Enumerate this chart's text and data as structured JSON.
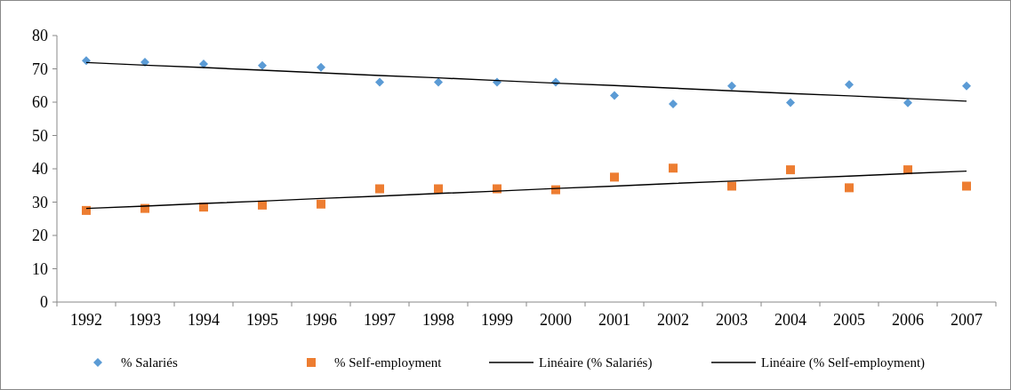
{
  "chart_data": {
    "type": "scatter",
    "categories": [
      "1992",
      "1993",
      "1994",
      "1995",
      "1996",
      "1997",
      "1998",
      "1999",
      "2000",
      "2001",
      "2002",
      "2003",
      "2004",
      "2005",
      "2006",
      "2007"
    ],
    "series": [
      {
        "name": "% Salariés",
        "marker": "diamond",
        "color": "#5b9bd5",
        "values": [
          72.5,
          72.0,
          71.5,
          71.0,
          70.5,
          66.0,
          66.0,
          66.0,
          66.0,
          62.0,
          59.5,
          64.9,
          59.9,
          65.3,
          59.8,
          64.9
        ]
      },
      {
        "name": "% Self-employment",
        "marker": "square",
        "color": "#ed7d31",
        "values": [
          27.5,
          28.1,
          28.5,
          29.1,
          29.4,
          34.0,
          34.0,
          34.0,
          33.7,
          37.5,
          40.2,
          34.8,
          39.7,
          34.3,
          39.7,
          34.8
        ]
      },
      {
        "name": "Linéaire (% Salariés)",
        "type": "line",
        "color": "#000000",
        "values": [
          71.9,
          71.1,
          70.4,
          69.6,
          68.8,
          68.0,
          67.3,
          66.5,
          65.7,
          65.0,
          64.2,
          63.4,
          62.6,
          61.9,
          61.1,
          60.3
        ]
      },
      {
        "name": "Linéaire (% Self-employment)",
        "type": "line",
        "color": "#000000",
        "values": [
          28.1,
          28.8,
          29.6,
          30.3,
          31.1,
          31.8,
          32.6,
          33.3,
          34.1,
          34.8,
          35.6,
          36.3,
          37.1,
          37.8,
          38.6,
          39.3
        ]
      }
    ],
    "ylim": [
      0,
      80
    ],
    "yticks": [
      0,
      10,
      20,
      30,
      40,
      50,
      60,
      70,
      80
    ],
    "grid": false,
    "legend": "bottom"
  }
}
